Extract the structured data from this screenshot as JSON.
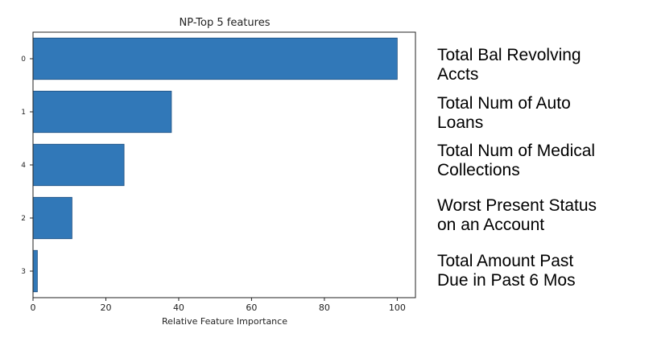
{
  "chart_data": {
    "type": "bar",
    "orientation": "horizontal",
    "title": "NP-Top 5 features",
    "xlabel": "Relative Feature Importance",
    "ylabel": "",
    "categories": [
      "0",
      "1",
      "4",
      "2",
      "3"
    ],
    "values": [
      100,
      38,
      25,
      10.7,
      1.2
    ],
    "xlim": [
      0,
      105
    ],
    "xticks": [
      "0",
      "20",
      "40",
      "60",
      "80",
      "100"
    ],
    "grid": false,
    "bar_color": "#3178b8"
  },
  "feature_labels": [
    {
      "line1": "Total Bal Revolving",
      "line2": "Accts"
    },
    {
      "line1": "Total Num of Auto",
      "line2": "Loans"
    },
    {
      "line1": "Total Num of Medical",
      "line2": "Collections"
    },
    {
      "line1": "Worst Present Status",
      "line2": "on an Account"
    },
    {
      "line1": "Total Amount Past",
      "line2": "Due in Past 6 Mos"
    }
  ]
}
